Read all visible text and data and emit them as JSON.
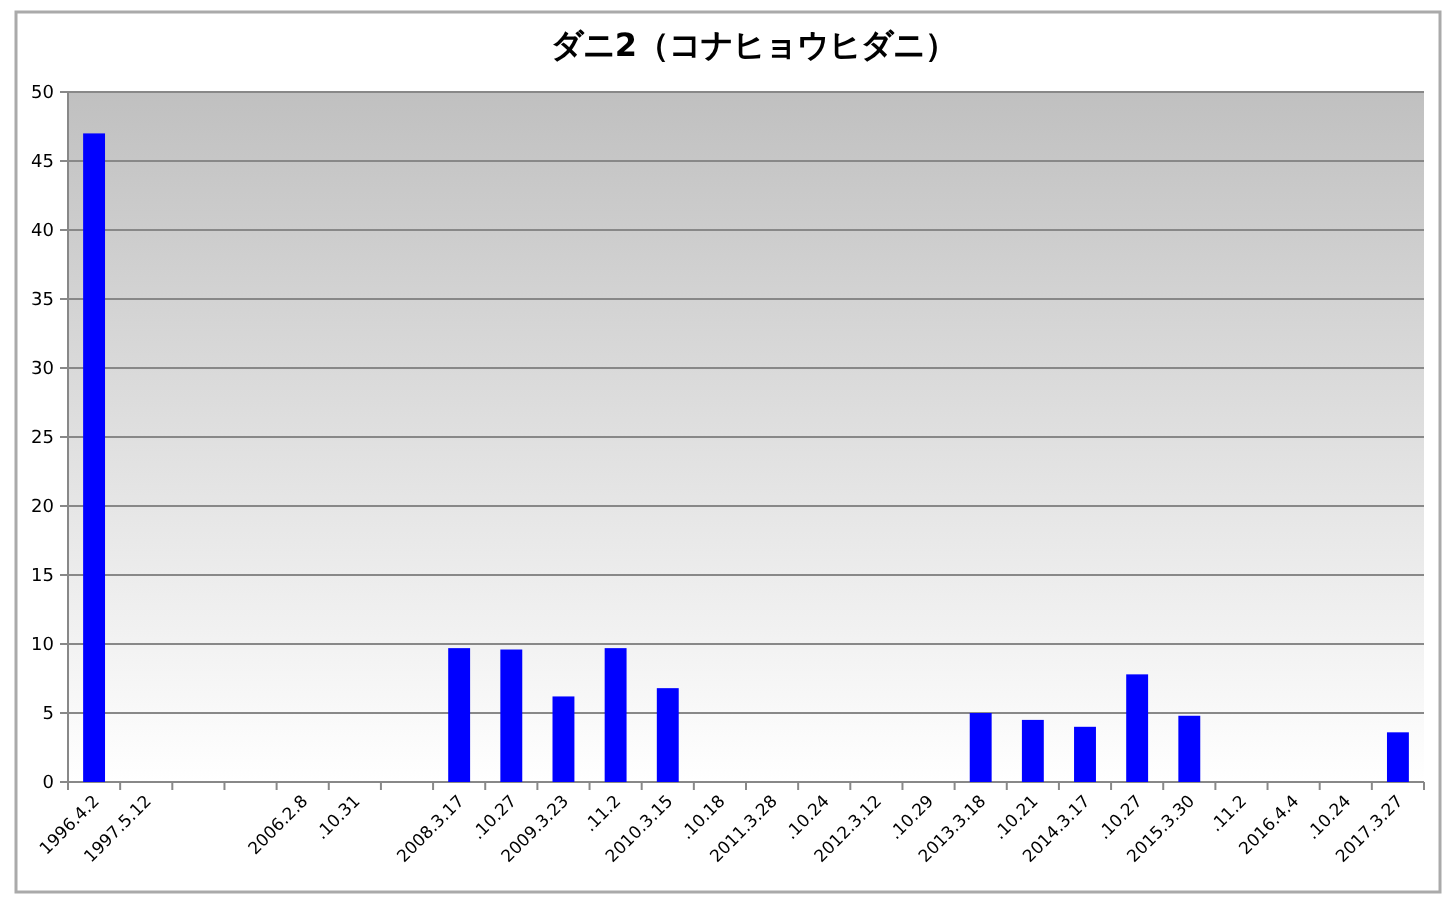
{
  "chart_data": {
    "type": "bar",
    "title": "ダニ2（コナヒョウヒダニ）",
    "categories": [
      "1996.4.2",
      "1997.5.12",
      null,
      null,
      "2006.2.8",
      ".10.31",
      null,
      "2008.3.17",
      ".10.27",
      "2009.3.23",
      ".11.2",
      "2010.3.15",
      ".10.18",
      "2011.3.28",
      ".10.24",
      "2012.3.12",
      ".10.29",
      "2013.3.18",
      ".10.21",
      "2014.3.17",
      ".10.27",
      "2015.3.30",
      ".11.2",
      "2016.4.4",
      ".10.24",
      "2017.3.27"
    ],
    "values": [
      47,
      null,
      null,
      null,
      null,
      null,
      null,
      9.7,
      9.6,
      6.2,
      9.7,
      6.8,
      null,
      null,
      null,
      null,
      null,
      5.0,
      4.5,
      4.0,
      7.8,
      4.8,
      null,
      null,
      null,
      3.6
    ],
    "color": "#0000ff",
    "ylim": [
      0,
      50
    ],
    "yticks": [
      0,
      5,
      10,
      15,
      20,
      25,
      30,
      35,
      40,
      45,
      50
    ],
    "grid": "y"
  }
}
